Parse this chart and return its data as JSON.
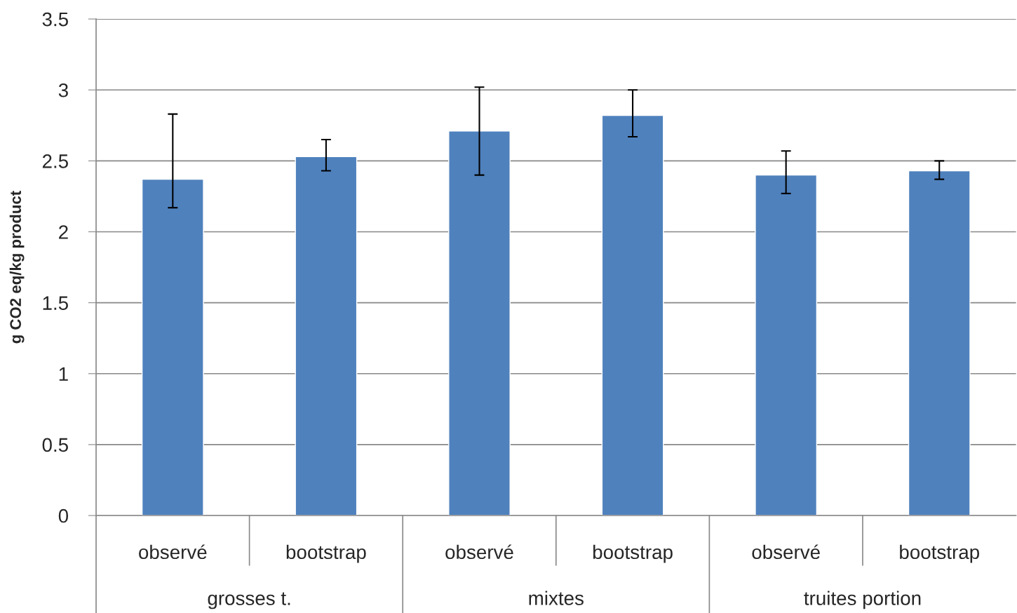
{
  "chart_data": {
    "type": "bar",
    "ylabel": "g CO2 eq/kg product",
    "categories": [
      "observé",
      "bootstrap",
      "observé",
      "bootstrap",
      "observé",
      "bootstrap"
    ],
    "values": [
      2.37,
      2.53,
      2.71,
      2.82,
      2.4,
      2.43
    ],
    "errors": [
      [
        2.17,
        2.83
      ],
      [
        2.43,
        2.65
      ],
      [
        2.4,
        3.02
      ],
      [
        2.67,
        3.0
      ],
      [
        2.27,
        2.57
      ],
      [
        2.37,
        2.5
      ]
    ],
    "color": "#4f81bd",
    "ylim": [
      0,
      3.5
    ],
    "yticks": [
      0,
      0.5,
      1,
      1.5,
      2,
      2.5,
      3,
      3.5
    ],
    "grid": "y",
    "legend": false,
    "annotations": [
      "grosses t.",
      "mixtes",
      "truites portion"
    ]
  }
}
